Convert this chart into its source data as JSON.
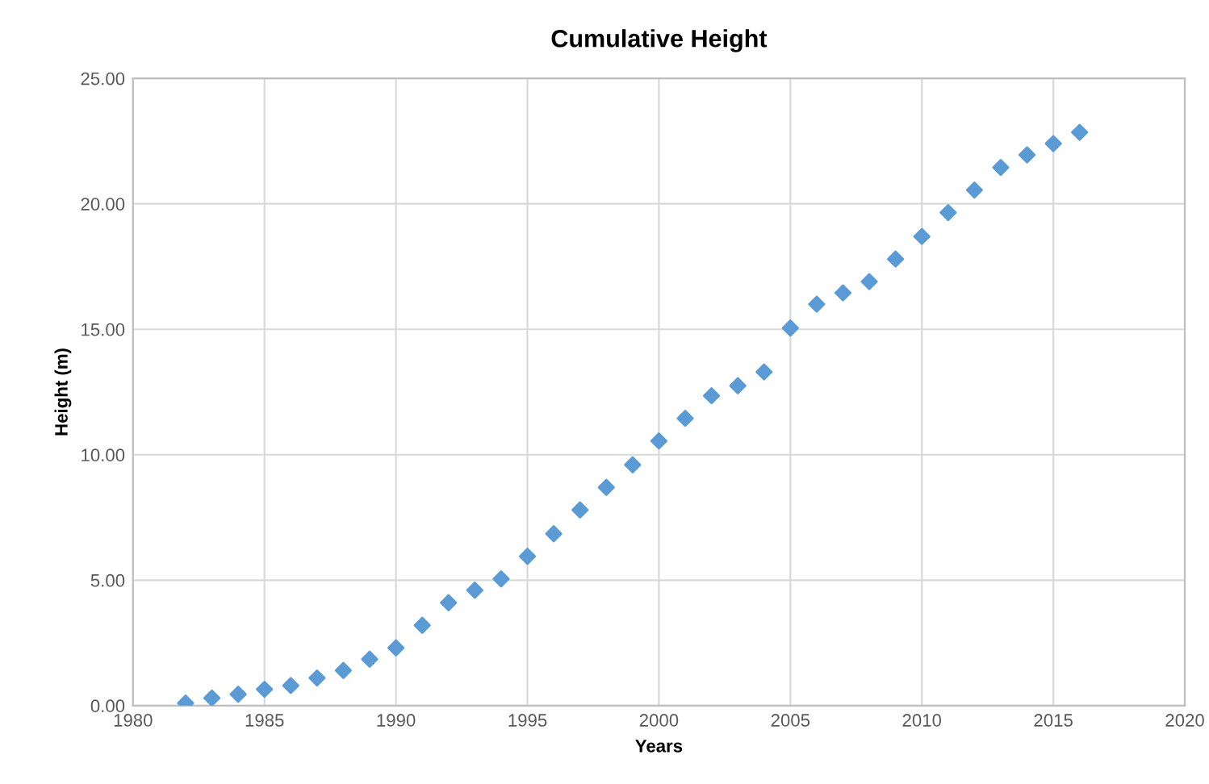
{
  "chart_data": {
    "type": "scatter",
    "title": "Cumulative Height",
    "xlabel": "Years",
    "ylabel": "Height (m)",
    "x": [
      1982,
      1983,
      1984,
      1985,
      1986,
      1987,
      1988,
      1989,
      1990,
      1991,
      1992,
      1993,
      1994,
      1995,
      1996,
      1997,
      1998,
      1999,
      2000,
      2001,
      2002,
      2003,
      2004,
      2005,
      2006,
      2007,
      2008,
      2009,
      2010,
      2011,
      2012,
      2013,
      2014,
      2015,
      2016
    ],
    "series": [
      {
        "color": "#5b9bd5",
        "values": [
          0.1,
          0.3,
          0.45,
          0.65,
          0.8,
          1.1,
          1.4,
          1.85,
          2.3,
          3.2,
          4.1,
          4.6,
          5.05,
          5.95,
          6.85,
          7.8,
          8.7,
          9.6,
          10.55,
          11.45,
          12.35,
          12.75,
          13.3,
          15.05,
          16.0,
          16.45,
          16.9,
          17.8,
          18.7,
          19.65,
          20.55,
          21.45,
          21.95,
          22.4,
          22.85
        ]
      }
    ],
    "xlim": [
      1980,
      2020
    ],
    "xticks": [
      1980,
      1985,
      1990,
      1995,
      2000,
      2005,
      2010,
      2015,
      2020
    ],
    "ylim": [
      0,
      25
    ],
    "yticks": [
      {
        "value": 0,
        "label": "0.00"
      },
      {
        "value": 5,
        "label": "5.00"
      },
      {
        "value": 10,
        "label": "10.00"
      },
      {
        "value": 15,
        "label": "15.00"
      },
      {
        "value": 20,
        "label": "20.00"
      },
      {
        "value": 25,
        "label": "25.00"
      }
    ],
    "grid": true,
    "marker": "diamond"
  }
}
